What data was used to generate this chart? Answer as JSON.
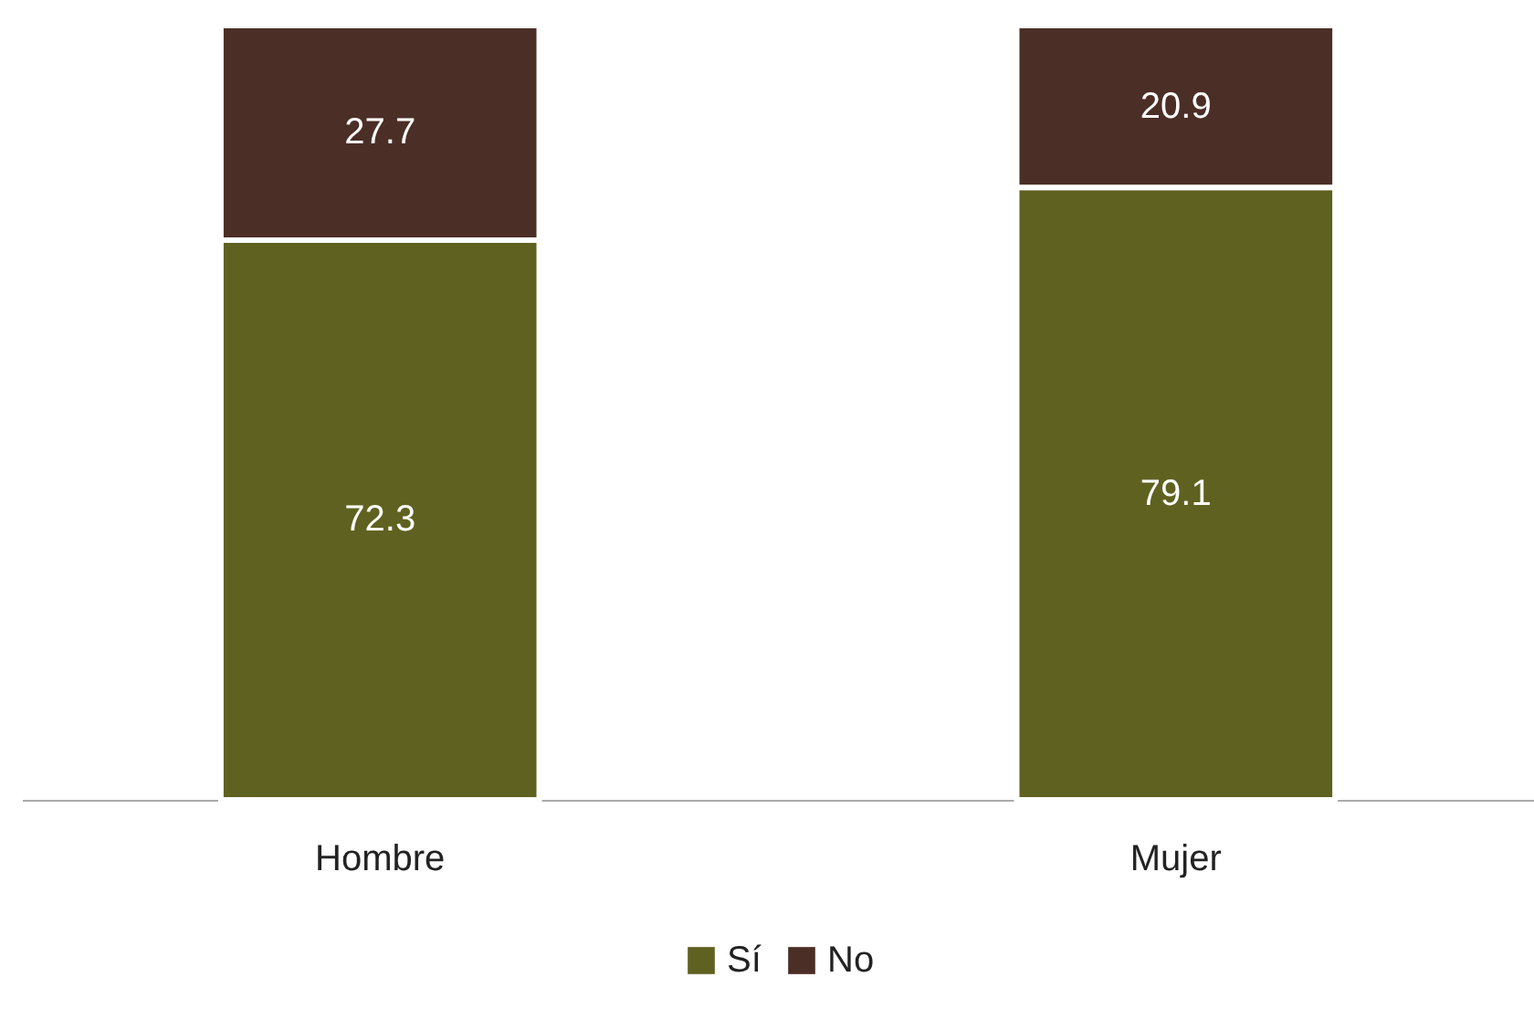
{
  "chart_data": {
    "type": "bar",
    "stacked": true,
    "categories": [
      "Hombre",
      "Mujer"
    ],
    "series": [
      {
        "name": "Sí",
        "color": "#5f6120",
        "values": [
          72.3,
          79.1
        ]
      },
      {
        "name": "No",
        "color": "#4b2e26",
        "values": [
          27.7,
          20.9
        ]
      }
    ],
    "data_labels": true,
    "legend": "bottom"
  }
}
